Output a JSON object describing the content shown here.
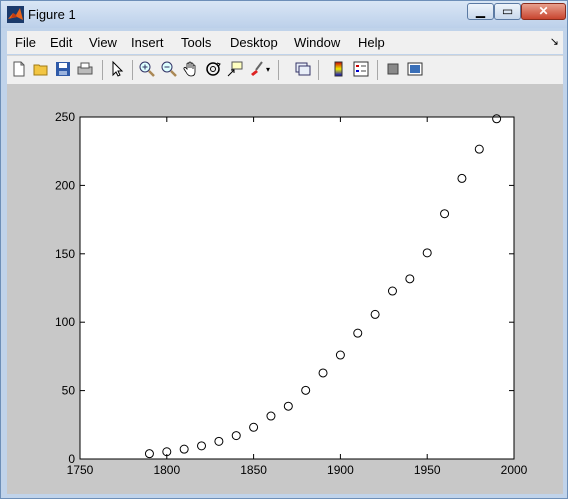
{
  "window": {
    "title": "Figure 1"
  },
  "menu": [
    "File",
    "Edit",
    "View",
    "Insert",
    "Tools",
    "Desktop",
    "Window",
    "Help"
  ],
  "toolbar_icons": [
    "new-figure-icon",
    "open-file-icon",
    "save-icon",
    "print-icon",
    "edit-plot-arrow-icon",
    "zoom-in-icon",
    "zoom-out-icon",
    "pan-hand-icon",
    "rotate-3d-icon",
    "data-cursor-icon",
    "brush-icon",
    "link-plot-icon",
    "colorbar-icon",
    "legend-icon",
    "hide-plot-tools-icon",
    "show-plot-tools-icon"
  ],
  "chart_data": {
    "type": "scatter",
    "marker": "circle",
    "x": [
      1790,
      1800,
      1810,
      1820,
      1830,
      1840,
      1850,
      1860,
      1870,
      1880,
      1890,
      1900,
      1910,
      1920,
      1930,
      1940,
      1950,
      1960,
      1970,
      1980,
      1990
    ],
    "y": [
      3.9,
      5.3,
      7.2,
      9.6,
      12.9,
      17.1,
      23.2,
      31.4,
      38.6,
      50.2,
      62.9,
      76.0,
      92.0,
      105.7,
      122.8,
      131.7,
      150.7,
      179.3,
      205.1,
      226.5,
      248.7
    ],
    "xlim": [
      1750,
      2000
    ],
    "ylim": [
      0,
      250
    ],
    "xticks": [
      1750,
      1800,
      1850,
      1900,
      1950,
      2000
    ],
    "yticks": [
      0,
      50,
      100,
      150,
      200,
      250
    ],
    "xlabel": "",
    "ylabel": "",
    "title": "",
    "grid": false
  }
}
